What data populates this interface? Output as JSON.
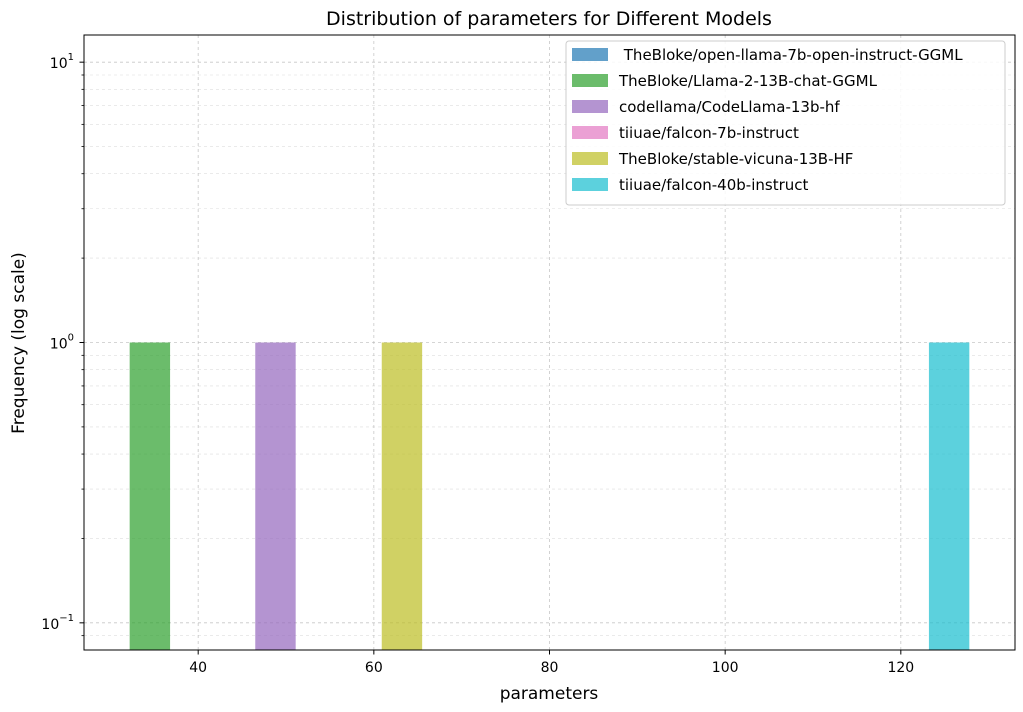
{
  "chart_data": {
    "type": "bar",
    "title": "Distribution of parameters for Different Models",
    "xlabel": "parameters",
    "ylabel": "Frequency (log scale)",
    "xlim": [
      27,
      133
    ],
    "ylim": [
      0.08,
      12.5
    ],
    "yscale": "log",
    "x_ticks": [
      40,
      60,
      80,
      100,
      120
    ],
    "y_ticks": [
      {
        "value": 0.1,
        "base": "10",
        "exp": "−1"
      },
      {
        "value": 1,
        "base": "10",
        "exp": "0"
      },
      {
        "value": 10,
        "base": "10",
        "exp": "1"
      }
    ],
    "grid": true,
    "legend_position": "top-right",
    "series": [
      {
        "name": " TheBloke/open-llama-7b-open-instruct-GGML",
        "color": "#1f77b4",
        "bins": []
      },
      {
        "name": "TheBloke/Llama-2-13B-chat-GGML",
        "color": "#2ca02c",
        "bins": [
          {
            "x0": 32.2,
            "x1": 36.8,
            "count": 1
          }
        ]
      },
      {
        "name": "codellama/CodeLlama-13b-hf",
        "color": "#9467bd",
        "bins": [
          {
            "x0": 46.5,
            "x1": 51.1,
            "count": 1
          }
        ]
      },
      {
        "name": "tiiuae/falcon-7b-instruct",
        "color": "#e377c2",
        "bins": []
      },
      {
        "name": "TheBloke/stable-vicuna-13B-HF",
        "color": "#bcbd22",
        "bins": [
          {
            "x0": 60.9,
            "x1": 65.5,
            "count": 1
          }
        ]
      },
      {
        "name": "tiiuae/falcon-40b-instruct",
        "color": "#17becf",
        "bins": [
          {
            "x0": 123.2,
            "x1": 127.8,
            "count": 1
          }
        ]
      }
    ]
  }
}
